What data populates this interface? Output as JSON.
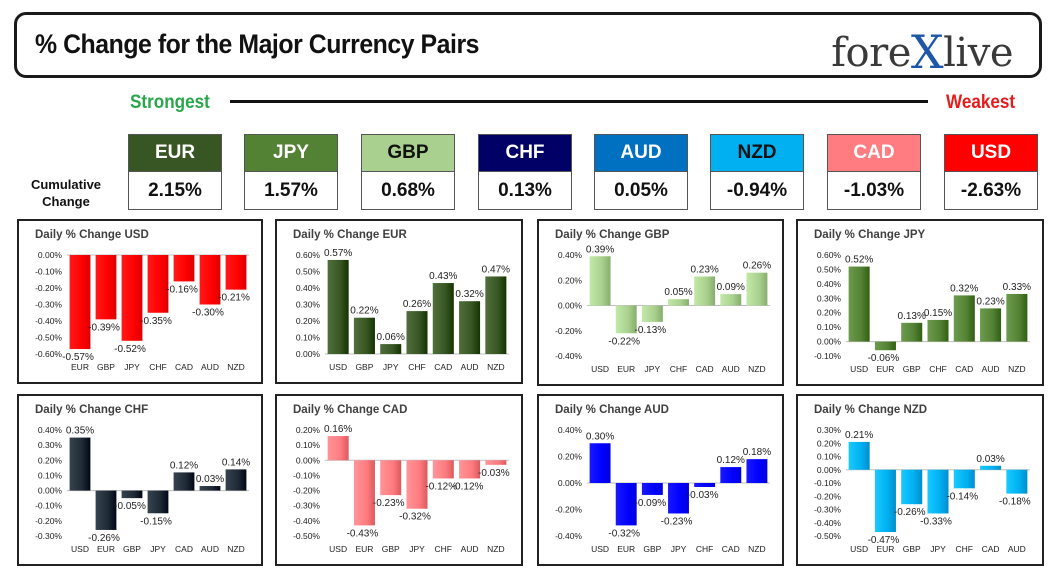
{
  "header": {
    "title": "% Change for the Major Currency Pairs",
    "logo_left": "fore",
    "logo_x": "X",
    "logo_right": "live"
  },
  "legend": {
    "strongest": "Strongest",
    "weakest": "Weakest"
  },
  "cumulative_label": "Cumulative\nChange",
  "currencies": [
    {
      "code": "EUR",
      "value": "2.15%",
      "color": "#375623",
      "text": "#ffffff"
    },
    {
      "code": "JPY",
      "value": "1.57%",
      "color": "#548235",
      "text": "#ffffff"
    },
    {
      "code": "GBP",
      "value": "0.68%",
      "color": "#a9d08e",
      "text": "#111111"
    },
    {
      "code": "CHF",
      "value": "0.13%",
      "color": "#000066",
      "text": "#ffffff"
    },
    {
      "code": "AUD",
      "value": "0.05%",
      "color": "#0070c0",
      "text": "#ffffff"
    },
    {
      "code": "NZD",
      "value": "-0.94%",
      "color": "#00b0f0",
      "text": "#111111"
    },
    {
      "code": "CAD",
      "value": "-1.03%",
      "color": "#ff7c80",
      "text": "#ffffff"
    },
    {
      "code": "USD",
      "value": "-2.63%",
      "color": "#ff0000",
      "text": "#ffffff"
    }
  ],
  "chart_data": [
    {
      "type": "bar",
      "title": "Daily % Change USD",
      "color": "#ff0000",
      "categories": [
        "EUR",
        "GBP",
        "JPY",
        "CHF",
        "CAD",
        "AUD",
        "NZD"
      ],
      "values": [
        -0.57,
        -0.39,
        -0.52,
        -0.35,
        -0.16,
        -0.3,
        -0.21
      ],
      "labels": [
        "-0.57%",
        "-0.39%",
        "-0.52%",
        "-0.35%",
        "-0.16%",
        "-0.30%",
        "-0.21%"
      ],
      "ylim": [
        -0.6,
        0.0
      ],
      "yticks": [
        "0.00%",
        "-0.10%",
        "-0.20%",
        "-0.30%",
        "-0.40%",
        "-0.50%",
        "-0.60%"
      ],
      "yticks_values": [
        0,
        -0.1,
        -0.2,
        -0.3,
        -0.4,
        -0.5,
        -0.6
      ]
    },
    {
      "type": "bar",
      "title": "Daily % Change EUR",
      "color": "#375623",
      "categories": [
        "USD",
        "GBP",
        "JPY",
        "CHF",
        "CAD",
        "AUD",
        "NZD"
      ],
      "values": [
        0.57,
        0.22,
        0.06,
        0.26,
        0.43,
        0.32,
        0.47
      ],
      "labels": [
        "0.57%",
        "0.22%",
        "0.06%",
        "0.26%",
        "0.43%",
        "0.32%",
        "0.47%"
      ],
      "ylim": [
        0.0,
        0.6
      ],
      "yticks": [
        "0.60%",
        "0.50%",
        "0.40%",
        "0.30%",
        "0.20%",
        "0.10%",
        "0.00%"
      ],
      "yticks_values": [
        0.6,
        0.5,
        0.4,
        0.3,
        0.2,
        0.1,
        0
      ]
    },
    {
      "type": "bar",
      "title": "Daily % Change GBP",
      "color": "#a9d08e",
      "categories": [
        "USD",
        "EUR",
        "JPY",
        "CHF",
        "CAD",
        "AUD",
        "NZD"
      ],
      "values": [
        0.39,
        -0.22,
        -0.13,
        0.05,
        0.23,
        0.09,
        0.26
      ],
      "labels": [
        "0.39%",
        "-0.22%",
        "-0.13%",
        "0.05%",
        "0.23%",
        "0.09%",
        "0.26%"
      ],
      "ylim": [
        -0.4,
        0.4
      ],
      "yticks": [
        "0.40%",
        "0.20%",
        "0.00%",
        "-0.20%",
        "-0.40%"
      ],
      "yticks_values": [
        0.4,
        0.2,
        0,
        -0.2,
        -0.4
      ]
    },
    {
      "type": "bar",
      "title": "Daily % Change JPY",
      "color": "#548235",
      "categories": [
        "USD",
        "EUR",
        "GBP",
        "CHF",
        "CAD",
        "AUD",
        "NZD"
      ],
      "values": [
        0.52,
        -0.06,
        0.13,
        0.15,
        0.32,
        0.23,
        0.33
      ],
      "labels": [
        "0.52%",
        "-0.06%",
        "0.13%",
        "0.15%",
        "0.32%",
        "0.23%",
        "0.33%"
      ],
      "ylim": [
        -0.1,
        0.6
      ],
      "yticks": [
        "0.60%",
        "0.50%",
        "0.40%",
        "0.30%",
        "0.20%",
        "0.10%",
        "0.00%",
        "-0.10%"
      ],
      "yticks_values": [
        0.6,
        0.5,
        0.4,
        0.3,
        0.2,
        0.1,
        0,
        -0.1
      ]
    },
    {
      "type": "bar",
      "title": "Daily % Change CHF",
      "color": "#1f2a37",
      "categories": [
        "USD",
        "EUR",
        "GBP",
        "JPY",
        "CAD",
        "AUD",
        "NZD"
      ],
      "values": [
        0.35,
        -0.26,
        -0.05,
        -0.15,
        0.12,
        0.03,
        0.14
      ],
      "labels": [
        "0.35%",
        "-0.26%",
        "-0.05%",
        "-0.15%",
        "0.12%",
        "0.03%",
        "0.14%"
      ],
      "ylim": [
        -0.3,
        0.4
      ],
      "yticks": [
        "0.40%",
        "0.30%",
        "0.20%",
        "0.10%",
        "0.00%",
        "-0.10%",
        "-0.20%",
        "-0.30%"
      ],
      "yticks_values": [
        0.4,
        0.3,
        0.2,
        0.1,
        0,
        -0.1,
        -0.2,
        -0.3
      ]
    },
    {
      "type": "bar",
      "title": "Daily % Change CAD",
      "color": "#ff7c80",
      "categories": [
        "USD",
        "EUR",
        "GBP",
        "JPY",
        "CHF",
        "AUD",
        "NZD"
      ],
      "values": [
        0.16,
        -0.43,
        -0.23,
        -0.32,
        -0.12,
        -0.12,
        -0.03
      ],
      "labels": [
        "0.16%",
        "-0.43%",
        "-0.23%",
        "-0.32%",
        "-0.12%",
        "-0.12%",
        "-0.03%"
      ],
      "ylim": [
        -0.5,
        0.2
      ],
      "yticks": [
        "0.20%",
        "0.10%",
        "0.00%",
        "-0.10%",
        "-0.20%",
        "-0.30%",
        "-0.40%",
        "-0.50%"
      ],
      "yticks_values": [
        0.2,
        0.1,
        0,
        -0.1,
        -0.2,
        -0.3,
        -0.4,
        -0.5
      ]
    },
    {
      "type": "bar",
      "title": "Daily % Change AUD",
      "color": "#0000ff",
      "categories": [
        "USD",
        "EUR",
        "GBP",
        "JPY",
        "CHF",
        "CAD",
        "NZD"
      ],
      "values": [
        0.3,
        -0.32,
        -0.09,
        -0.23,
        -0.03,
        0.12,
        0.18
      ],
      "labels": [
        "0.30%",
        "-0.32%",
        "-0.09%",
        "-0.23%",
        "-0.03%",
        "0.12%",
        "0.18%"
      ],
      "ylim": [
        -0.4,
        0.4
      ],
      "yticks": [
        "0.40%",
        "0.20%",
        "0.00%",
        "-0.20%",
        "-0.40%"
      ],
      "yticks_values": [
        0.4,
        0.2,
        0,
        -0.2,
        -0.4
      ]
    },
    {
      "type": "bar",
      "title": "Daily % Change NZD",
      "color": "#00b0f0",
      "categories": [
        "USD",
        "EUR",
        "GBP",
        "JPY",
        "CHF",
        "CAD",
        "AUD"
      ],
      "values": [
        0.21,
        -0.47,
        -0.26,
        -0.33,
        -0.14,
        0.03,
        -0.18
      ],
      "labels": [
        "0.21%",
        "-0.47%",
        "-0.26%",
        "-0.33%",
        "-0.14%",
        "0.03%",
        "-0.18%"
      ],
      "ylim": [
        -0.5,
        0.3
      ],
      "yticks": [
        "0.30%",
        "0.20%",
        "0.10%",
        "0.00%",
        "-0.10%",
        "-0.20%",
        "-0.30%",
        "-0.40%",
        "-0.50%"
      ],
      "yticks_values": [
        0.3,
        0.2,
        0.1,
        0,
        -0.1,
        -0.2,
        -0.3,
        -0.4,
        -0.5
      ]
    }
  ]
}
